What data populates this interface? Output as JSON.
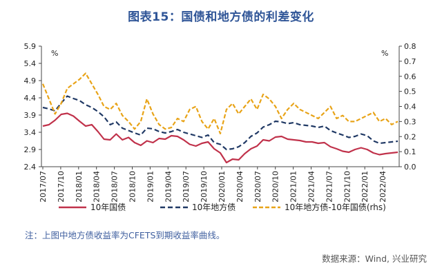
{
  "title": "图表15：国债和地方债的利差变化",
  "note": "注：上图中地方债收益率为CFETS到期收益率曲线。",
  "source": "数据来源：Wind, 兴业研究",
  "chart_data": {
    "type": "line",
    "left_axis": {
      "unit": "%",
      "min": 2.4,
      "max": 5.9,
      "ticks": [
        "5.9",
        "5.4",
        "4.9",
        "4.4",
        "3.9",
        "3.4",
        "2.9",
        "2.4"
      ]
    },
    "right_axis": {
      "unit": "%",
      "min": 0.0,
      "max": 0.8,
      "ticks": [
        "0.8",
        "0.7",
        "0.6",
        "0.5",
        "0.4",
        "0.3",
        "0.2",
        "0.1",
        "0.0"
      ]
    },
    "x_ticks": [
      "2017/07",
      "2017/10",
      "2018/01",
      "2018/04",
      "2018/07",
      "2018/10",
      "2019/01",
      "2019/04",
      "2019/07",
      "2019/10",
      "2020/01",
      "2020/04",
      "2020/07",
      "2020/10",
      "2021/01",
      "2021/04",
      "2021/07",
      "2021/10",
      "2022/01",
      "2022/04"
    ],
    "series": [
      {
        "name": "10年国债",
        "axis": "left",
        "color": "#c0314a",
        "dash": "solid",
        "values": [
          3.58,
          3.62,
          3.75,
          3.92,
          3.95,
          3.87,
          3.72,
          3.58,
          3.62,
          3.42,
          3.2,
          3.18,
          3.35,
          3.18,
          3.25,
          3.1,
          3.02,
          3.15,
          3.1,
          3.22,
          3.2,
          3.3,
          3.28,
          3.18,
          3.05,
          3.0,
          3.08,
          3.12,
          2.92,
          2.8,
          2.52,
          2.62,
          2.6,
          2.78,
          2.92,
          3.0,
          3.18,
          3.15,
          3.26,
          3.28,
          3.2,
          3.18,
          3.16,
          3.12,
          3.12,
          3.08,
          3.1,
          2.98,
          2.92,
          2.85,
          2.82,
          2.9,
          2.95,
          2.9,
          2.8,
          2.75,
          2.78,
          2.8,
          2.82
        ]
      },
      {
        "name": "10年地方债",
        "axis": "left",
        "color": "#1f3864",
        "dash": "dashed",
        "values": [
          4.12,
          4.08,
          4.02,
          4.25,
          4.45,
          4.38,
          4.32,
          4.2,
          4.12,
          4.0,
          3.85,
          3.62,
          3.7,
          3.52,
          3.45,
          3.38,
          3.32,
          3.52,
          3.5,
          3.42,
          3.38,
          3.42,
          3.48,
          3.4,
          3.35,
          3.3,
          3.25,
          3.32,
          3.1,
          3.05,
          2.9,
          2.92,
          2.98,
          3.1,
          3.28,
          3.38,
          3.55,
          3.62,
          3.72,
          3.7,
          3.65,
          3.68,
          3.62,
          3.6,
          3.58,
          3.54,
          3.58,
          3.45,
          3.38,
          3.32,
          3.25,
          3.28,
          3.35,
          3.3,
          3.15,
          3.08,
          3.1,
          3.12,
          3.14
        ]
      },
      {
        "name": "10年地方债-10年国债(rhs)",
        "axis": "right",
        "color": "#e8a317",
        "dash": "dashed",
        "values": [
          0.55,
          0.45,
          0.35,
          0.42,
          0.52,
          0.55,
          0.58,
          0.62,
          0.55,
          0.48,
          0.4,
          0.38,
          0.42,
          0.34,
          0.3,
          0.25,
          0.3,
          0.45,
          0.35,
          0.28,
          0.25,
          0.26,
          0.32,
          0.3,
          0.38,
          0.4,
          0.3,
          0.25,
          0.32,
          0.22,
          0.38,
          0.42,
          0.35,
          0.4,
          0.45,
          0.38,
          0.48,
          0.45,
          0.4,
          0.32,
          0.38,
          0.42,
          0.38,
          0.36,
          0.34,
          0.32,
          0.36,
          0.4,
          0.32,
          0.34,
          0.3,
          0.3,
          0.32,
          0.34,
          0.36,
          0.3,
          0.32,
          0.28,
          0.3
        ]
      }
    ],
    "legend_position": "bottom"
  }
}
